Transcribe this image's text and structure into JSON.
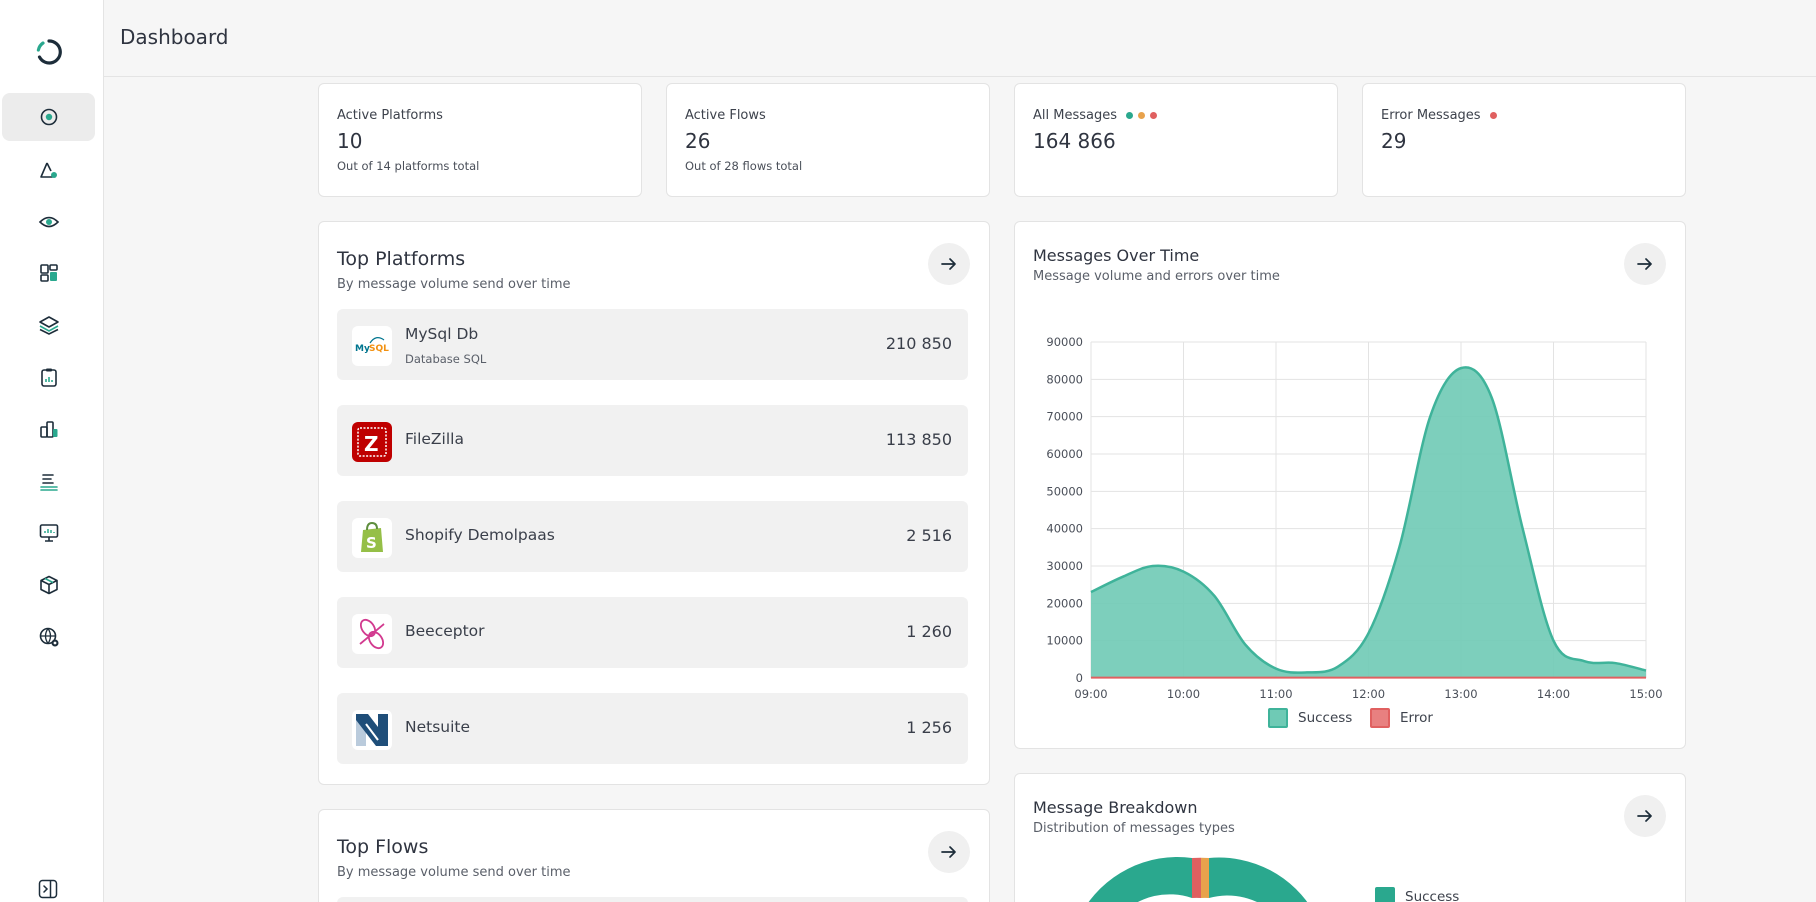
{
  "header": {
    "title": "Dashboard"
  },
  "sidebar": {
    "items": [
      {
        "name": "dashboard",
        "icon": "dashboard-icon",
        "active": true
      },
      {
        "name": "platforms",
        "icon": "platform-icon"
      },
      {
        "name": "monitoring",
        "icon": "eye-icon"
      },
      {
        "name": "widgets",
        "icon": "grid-icon"
      },
      {
        "name": "layers",
        "icon": "layers-icon"
      },
      {
        "name": "reports",
        "icon": "clipboard-icon"
      },
      {
        "name": "analytics",
        "icon": "bar-chart-icon"
      },
      {
        "name": "logs",
        "icon": "list-icon"
      },
      {
        "name": "screens",
        "icon": "monitor-icon"
      },
      {
        "name": "packages",
        "icon": "box-icon"
      },
      {
        "name": "global-settings",
        "icon": "globe-gear-icon"
      }
    ]
  },
  "stats": [
    {
      "label": "Active Platforms",
      "value": "10",
      "sub": "Out of 14 platforms total"
    },
    {
      "label": "Active Flows",
      "value": "26",
      "sub": "Out of 28 flows total"
    },
    {
      "label": "All Messages",
      "value": "164 866",
      "sub": ""
    },
    {
      "label": "Error Messages",
      "value": "29",
      "sub": ""
    }
  ],
  "top_platforms": {
    "title": "Top Platforms",
    "subtitle": "By message volume send over time",
    "items": [
      {
        "name": "MySql Db",
        "type": "Database SQL",
        "count": "210 850",
        "icon": "mysql-logo"
      },
      {
        "name": "FileZilla",
        "type": "",
        "count": "113 850",
        "icon": "filezilla-logo"
      },
      {
        "name": "Shopify Demolpaas",
        "type": "",
        "count": "2 516",
        "icon": "shopify-logo"
      },
      {
        "name": "Beeceptor",
        "type": "",
        "count": "1 260",
        "icon": "beeceptor-logo"
      },
      {
        "name": "Netsuite",
        "type": "",
        "count": "1 256",
        "icon": "netsuite-logo"
      }
    ]
  },
  "top_flows": {
    "title": "Top Flows",
    "subtitle": "By message volume send over time"
  },
  "messages_over_time": {
    "title": "Messages Over Time",
    "subtitle": "Message volume and errors over time"
  },
  "message_breakdown": {
    "title": "Message Breakdown",
    "subtitle": "Distribution of messages types",
    "legend": [
      "Success"
    ]
  },
  "colors": {
    "success": "#6fcab5",
    "success_line": "#3fb39a",
    "error": "#e06060",
    "orange": "#e8a24c",
    "brand": "#2aa88e"
  },
  "chart_data": {
    "type": "area",
    "title": "Messages Over Time",
    "x": [
      "09:00",
      "09:20",
      "09:40",
      "10:00",
      "10:20",
      "10:40",
      "11:00",
      "11:20",
      "11:40",
      "12:00",
      "12:20",
      "12:40",
      "13:00",
      "13:20",
      "13:40",
      "14:00",
      "14:20",
      "14:40",
      "15:00"
    ],
    "xticks": [
      "09:00",
      "10:00",
      "11:00",
      "12:00",
      "13:00",
      "14:00",
      "15:00"
    ],
    "yticks": [
      0,
      10000,
      20000,
      30000,
      40000,
      50000,
      60000,
      70000,
      80000,
      90000
    ],
    "ylim": [
      0,
      90000
    ],
    "series": [
      {
        "name": "Success",
        "values": [
          23000,
          27000,
          30000,
          28500,
          22000,
          9000,
          2500,
          1500,
          3000,
          12000,
          35000,
          70000,
          83000,
          75000,
          40000,
          10000,
          4500,
          4000,
          2000
        ]
      },
      {
        "name": "Error",
        "values": [
          100,
          100,
          100,
          100,
          100,
          100,
          100,
          100,
          100,
          100,
          100,
          100,
          100,
          100,
          100,
          100,
          100,
          100,
          100
        ]
      }
    ],
    "legend": [
      "Success",
      "Error"
    ]
  }
}
